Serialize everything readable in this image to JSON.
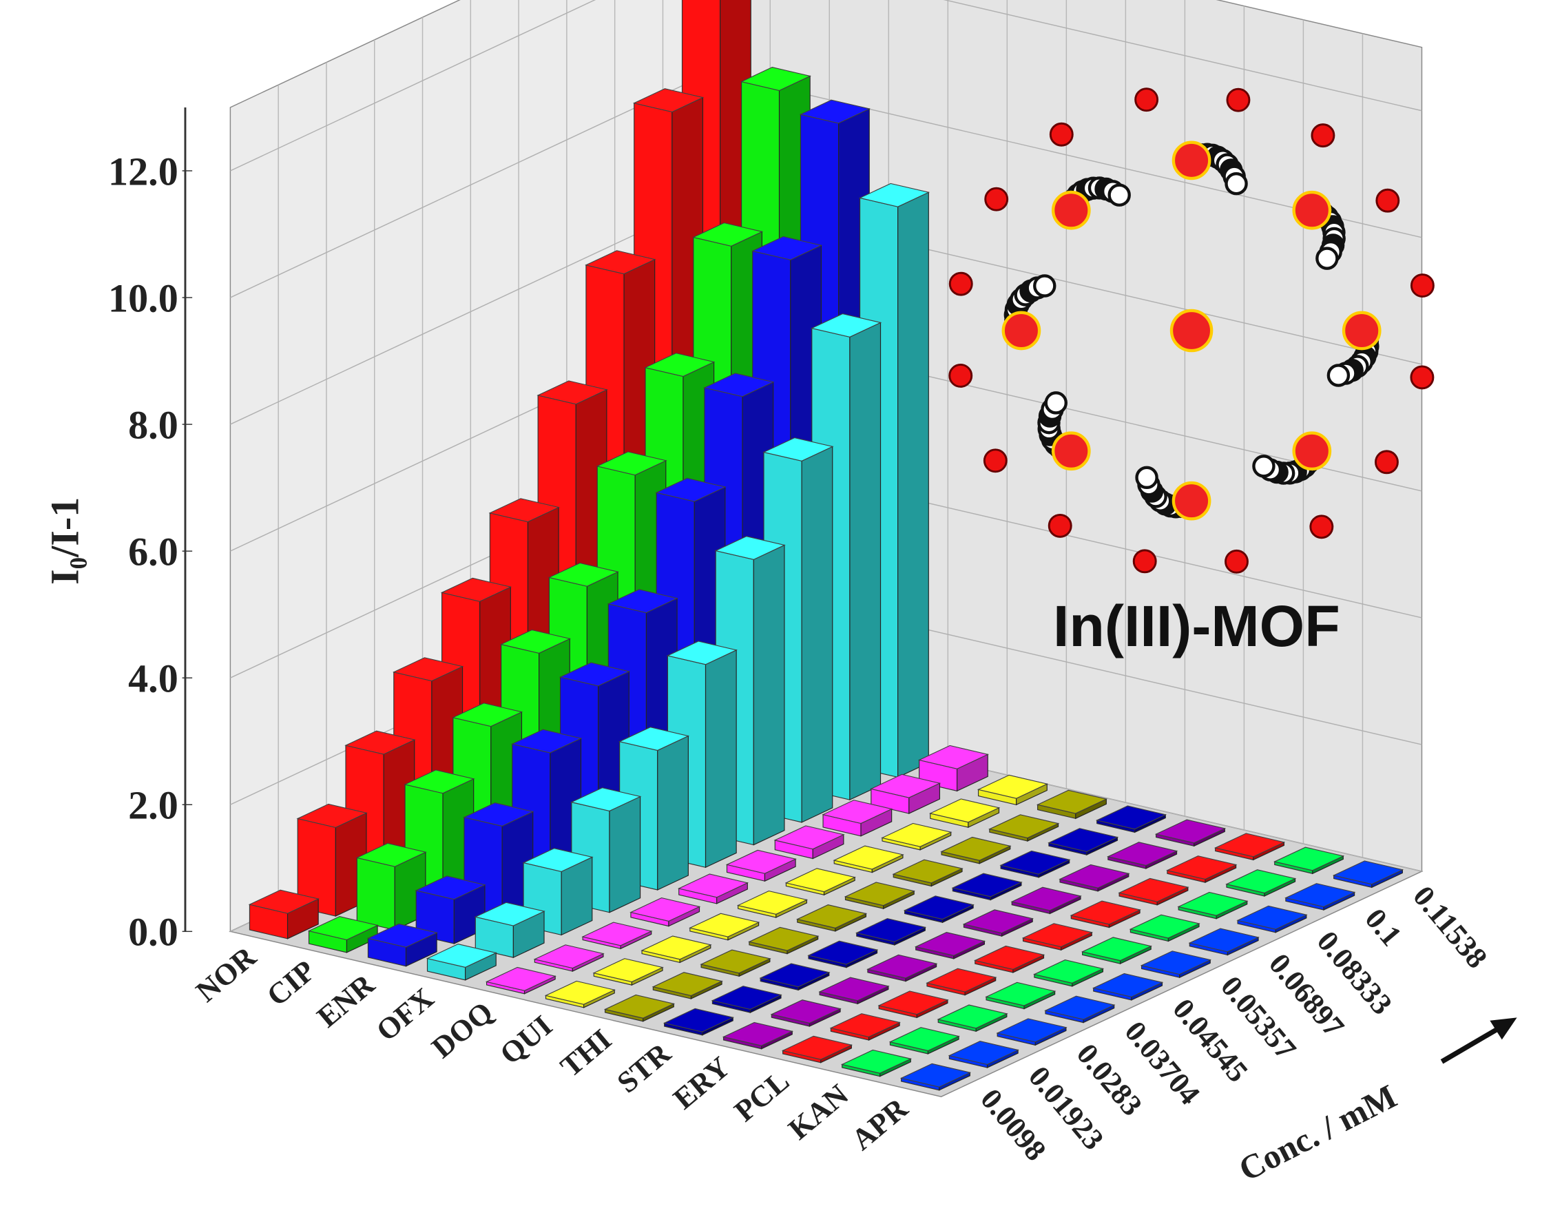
{
  "chart_data": {
    "type": "bar3d",
    "y_label": "I₀/I-1",
    "z_label": "Conc. / mM",
    "annotation": "In(III)-MOF",
    "concentrations": [
      "0.0098",
      "0.01923",
      "0.0283",
      "0.03704",
      "0.04545",
      "0.05357",
      "0.06897",
      "0.08333",
      "0.1",
      "0.11538"
    ],
    "ylim": [
      0,
      13
    ],
    "yticks": [
      {
        "value": 0,
        "label": "0.0"
      },
      {
        "value": 2,
        "label": "2.0"
      },
      {
        "value": 4,
        "label": "4.0"
      },
      {
        "value": 6,
        "label": "6.0"
      },
      {
        "value": 8,
        "label": "8.0"
      },
      {
        "value": 10,
        "label": "10.0"
      },
      {
        "value": 12,
        "label": "12.0"
      }
    ],
    "grid": true,
    "series": [
      {
        "name": "NOR",
        "color": "#ff1010",
        "values": [
          0.4,
          1.4,
          2.2,
          3.0,
          3.9,
          4.8,
          6.3,
          8.0,
          10.2,
          12.3
        ]
      },
      {
        "name": "CIP",
        "color": "#10ee10",
        "values": [
          0.2,
          1.0,
          1.8,
          2.5,
          3.3,
          4.0,
          5.4,
          6.6,
          8.3,
          10.4
        ]
      },
      {
        "name": "ENR",
        "color": "#1010ee",
        "values": [
          0.3,
          0.7,
          1.5,
          2.3,
          3.0,
          3.8,
          5.2,
          6.5,
          8.3,
          10.1
        ]
      },
      {
        "name": "OFX",
        "color": "#30dcdc",
        "values": [
          0.2,
          0.5,
          1.0,
          1.6,
          2.2,
          3.2,
          4.5,
          5.7,
          7.3,
          9.0
        ]
      },
      {
        "name": "DOQ",
        "color": "#ff30ff",
        "values": [
          0.05,
          0.05,
          0.05,
          0.08,
          0.1,
          0.12,
          0.15,
          0.2,
          0.25,
          0.35
        ]
      },
      {
        "name": "QUI",
        "color": "#eeee20",
        "values": [
          0.05,
          0.05,
          0.05,
          0.05,
          0.05,
          0.05,
          0.05,
          0.05,
          0.08,
          0.1
        ]
      },
      {
        "name": "THI",
        "color": "#8a8a00",
        "values": [
          0.05,
          0.05,
          0.05,
          0.05,
          0.05,
          0.05,
          0.05,
          0.05,
          0.05,
          0.08
        ]
      },
      {
        "name": "STR",
        "color": "#000099",
        "values": [
          0.05,
          0.05,
          0.05,
          0.05,
          0.05,
          0.05,
          0.05,
          0.05,
          0.05,
          0.05
        ]
      },
      {
        "name": "ERY",
        "color": "#880099",
        "values": [
          0.05,
          0.05,
          0.05,
          0.05,
          0.05,
          0.05,
          0.05,
          0.05,
          0.05,
          0.05
        ]
      },
      {
        "name": "PCL",
        "color": "#ee1111",
        "values": [
          0.05,
          0.05,
          0.05,
          0.05,
          0.05,
          0.05,
          0.05,
          0.05,
          0.05,
          0.05
        ]
      },
      {
        "name": "KAN",
        "color": "#00cc44",
        "values": [
          0.05,
          0.05,
          0.05,
          0.05,
          0.05,
          0.05,
          0.05,
          0.05,
          0.05,
          0.05
        ]
      },
      {
        "name": "APR",
        "color": "#0033ff",
        "values": [
          0.05,
          0.05,
          0.05,
          0.05,
          0.05,
          0.05,
          0.05,
          0.05,
          0.05,
          0.05
        ]
      }
    ]
  }
}
